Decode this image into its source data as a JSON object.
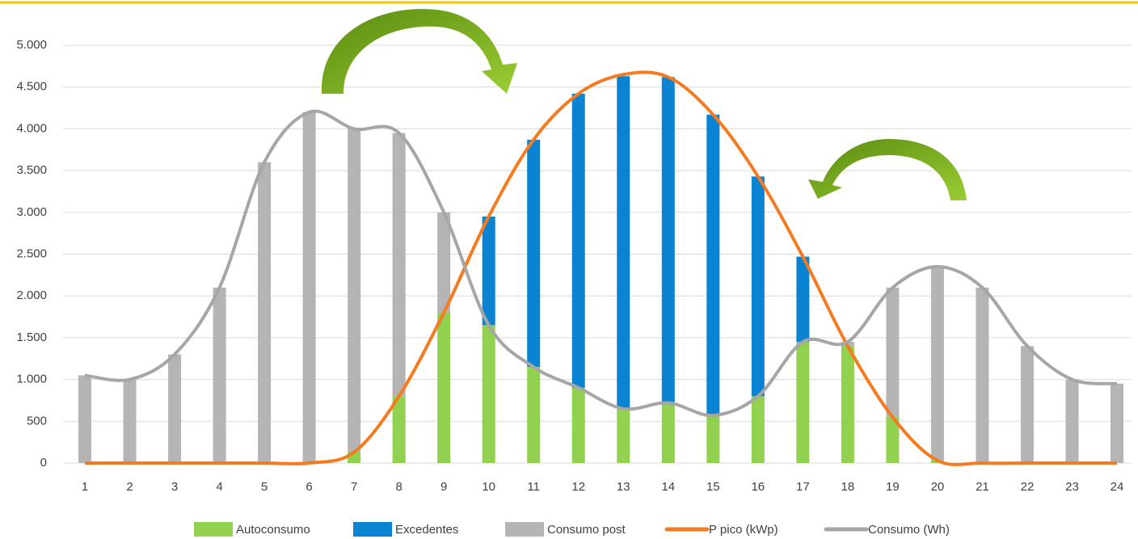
{
  "chart_data": {
    "type": "bar_line",
    "categories": [
      "1",
      "2",
      "3",
      "4",
      "5",
      "6",
      "7",
      "8",
      "9",
      "10",
      "11",
      "12",
      "13",
      "14",
      "15",
      "16",
      "17",
      "18",
      "19",
      "20",
      "21",
      "22",
      "23",
      "24"
    ],
    "series": [
      {
        "name": "Autoconsumo",
        "kind": "bar",
        "color": "#92d050",
        "values": [
          0,
          0,
          0,
          0,
          0,
          0,
          130,
          800,
          1800,
          1650,
          1150,
          900,
          650,
          720,
          570,
          800,
          1450,
          1400,
          550,
          30,
          0,
          0,
          0,
          0
        ]
      },
      {
        "name": "Excedentes",
        "kind": "bar",
        "color": "#0a83d2",
        "values": [
          0,
          0,
          0,
          0,
          0,
          0,
          0,
          0,
          0,
          1300,
          2720,
          3520,
          3980,
          3900,
          3600,
          2630,
          1020,
          0,
          0,
          0,
          0,
          0,
          0,
          0
        ]
      },
      {
        "name": "Consumo post",
        "kind": "bar",
        "color": "#b4b4b4",
        "values": [
          1050,
          1000,
          1300,
          2100,
          3600,
          4200,
          3870,
          3150,
          1200,
          0,
          0,
          0,
          0,
          0,
          0,
          0,
          0,
          50,
          1550,
          2320,
          2100,
          1400,
          1000,
          950
        ]
      },
      {
        "name": "P pico (kWp)",
        "kind": "line",
        "color": "#f47b20",
        "values": [
          0,
          0,
          0,
          0,
          0,
          0,
          130,
          800,
          1800,
          2950,
          3870,
          4420,
          4650,
          4620,
          4170,
          3430,
          2470,
          1400,
          550,
          30,
          0,
          0,
          0,
          0
        ]
      },
      {
        "name": "Consumo (Wh)",
        "kind": "line",
        "color": "#a6a6a6",
        "values": [
          1050,
          1000,
          1300,
          2100,
          3600,
          4200,
          4000,
          3950,
          3000,
          1650,
          1150,
          900,
          650,
          720,
          570,
          800,
          1450,
          1450,
          2100,
          2350,
          2100,
          1400,
          1000,
          950
        ]
      }
    ],
    "ylim": [
      0,
      5000
    ],
    "yticks": [
      0,
      500,
      {
        "value": 1000,
        "label": "1.000"
      },
      {
        "value": 1500,
        "label": "1.500"
      },
      {
        "value": 2000,
        "label": "2.000"
      },
      {
        "value": 2500,
        "label": "2.500"
      },
      {
        "value": 3000,
        "label": "3.000"
      },
      {
        "value": 3500,
        "label": "3.500"
      },
      {
        "value": 4000,
        "label": "4.000"
      },
      {
        "value": 4500,
        "label": "4.500"
      },
      {
        "value": 5000,
        "label": "5.000"
      }
    ],
    "grid": true,
    "legend": "bottom"
  }
}
